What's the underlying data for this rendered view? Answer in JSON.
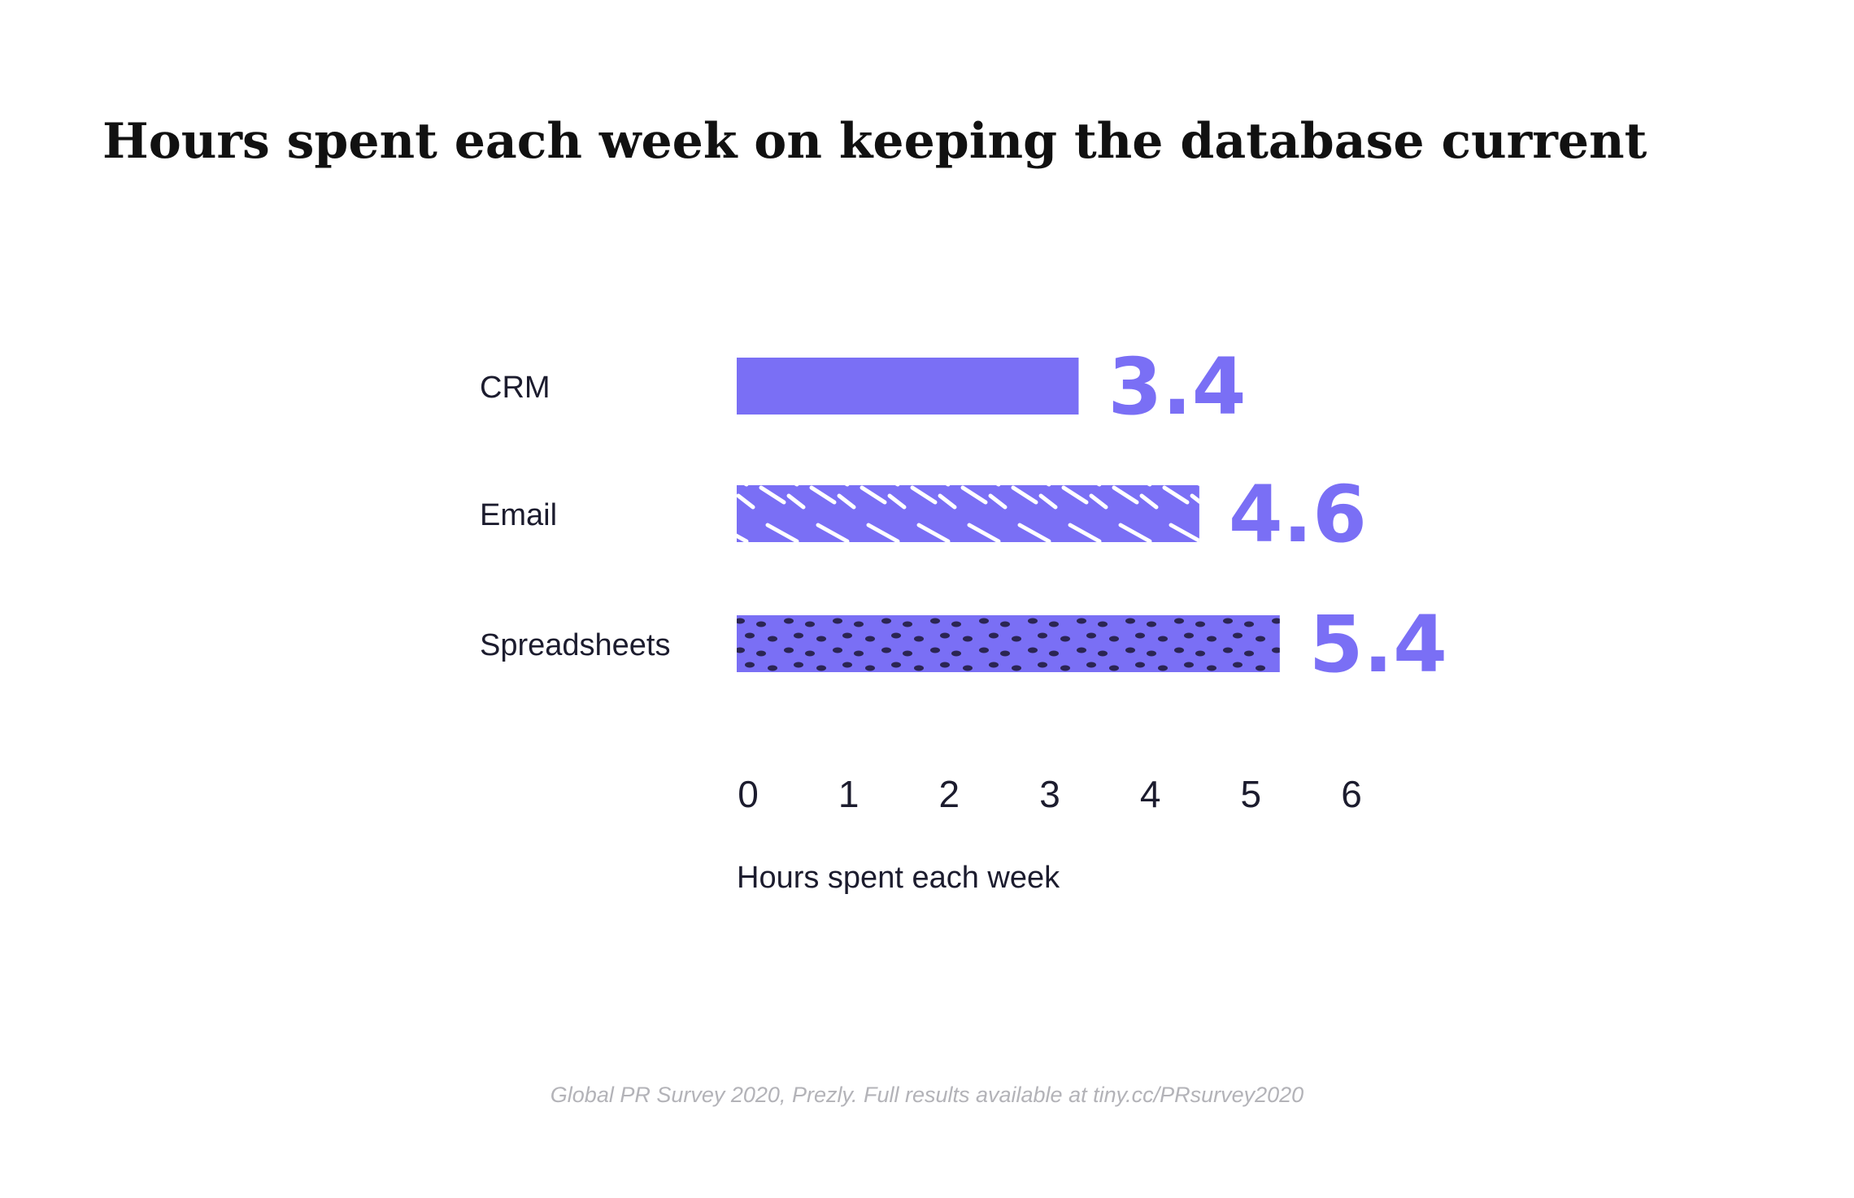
{
  "chart_data": {
    "type": "bar",
    "orientation": "horizontal",
    "title": "Hours spent each week on keeping the database current",
    "categories": [
      "CRM",
      "Email",
      "Spreadsheets"
    ],
    "values": [
      3.4,
      4.6,
      5.4
    ],
    "value_labels": [
      "3.4",
      "4.6",
      "5.4"
    ],
    "xlabel": "Hours spent each week",
    "ylabel": "",
    "xlim": [
      0,
      6
    ],
    "xticks": [
      "0",
      "1",
      "2",
      "3",
      "4",
      "5",
      "6"
    ],
    "grid": false,
    "legend": "none",
    "patterns": [
      "solid",
      "white-dashes",
      "dark-dots"
    ],
    "colors": {
      "bar": "#7a6ff5",
      "value_label": "#7a6ff5",
      "pattern_dash": "#ffffff",
      "pattern_dot": "#2b2553"
    }
  },
  "footer": {
    "source": "Global PR Survey 2020, Prezly.  Full results available at tiny.cc/PRsurvey2020"
  }
}
